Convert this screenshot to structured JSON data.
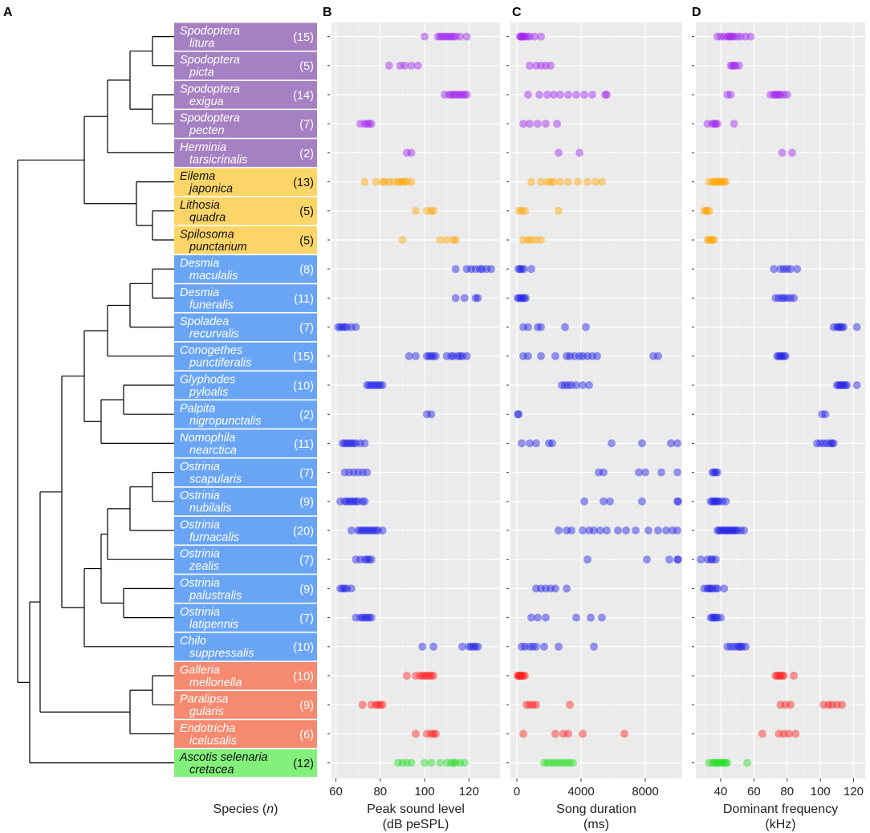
{
  "chart_data": {
    "type": "scatter",
    "panel_letters": [
      "A",
      "B",
      "C",
      "D"
    ],
    "colors": {
      "Erebidae-noctuid": "#a580c2",
      "Arctiinae": "#fcd569",
      "Crambidae": "#6aa5f5",
      "Pyralidae": "#f58a70",
      "Geometridae": "#82f07a",
      "point_purple": "#a020f0",
      "point_orange": "#ffa500",
      "point_blue": "#1c1ce6",
      "point_red": "#ff1a1a",
      "point_green": "#22dd22",
      "panel_bg": "#ebebeb"
    },
    "species": [
      {
        "genus": "Spodoptera",
        "epithet": "litura",
        "n": "(15)",
        "group": "Erebidae-noctuid",
        "pt": "point_purple",
        "peak": [
          100,
          106,
          107,
          108,
          109,
          110,
          111,
          112,
          113,
          114,
          116,
          119
        ],
        "dur": [
          180,
          250,
          300,
          350,
          420,
          500,
          650,
          800,
          1100,
          1500
        ],
        "freq": [
          38,
          40,
          42,
          44,
          45,
          46,
          47,
          48,
          50,
          52,
          55,
          58
        ]
      },
      {
        "genus": "Spodoptera",
        "epithet": "picta",
        "n": "(5)",
        "group": "Erebidae-noctuid",
        "pt": "point_purple",
        "peak": [
          84,
          89,
          91,
          94,
          97
        ],
        "dur": [
          800,
          1200,
          1500,
          1800,
          2100
        ],
        "freq": [
          46,
          47,
          48,
          49,
          51
        ]
      },
      {
        "genus": "Spodoptera",
        "epithet": "exigua",
        "n": "(14)",
        "group": "Erebidae-noctuid",
        "pt": "point_purple",
        "peak": [
          109,
          111,
          112,
          113,
          114,
          115,
          116,
          117,
          118,
          119
        ],
        "dur": [
          700,
          1400,
          1900,
          2300,
          2700,
          3200,
          3700,
          4200,
          4700,
          5500,
          5600
        ],
        "freq": [
          44,
          46,
          70,
          72,
          73,
          74,
          75,
          76,
          78,
          80
        ]
      },
      {
        "genus": "Spodoptera",
        "epithet": "pecten",
        "n": "(7)",
        "group": "Erebidae-noctuid",
        "pt": "point_purple",
        "peak": [
          71,
          73,
          74,
          75,
          76
        ],
        "dur": [
          400,
          800,
          1300,
          1800,
          2500
        ],
        "freq": [
          32,
          35,
          36,
          37,
          38,
          48
        ]
      },
      {
        "genus": "Herminia",
        "epithet": "tarsicrinalis",
        "n": "(2)",
        "group": "Erebidae-noctuid",
        "pt": "point_purple",
        "peak": [
          92,
          94
        ],
        "dur": [
          2600,
          3900
        ],
        "freq": [
          77,
          83
        ]
      },
      {
        "genus": "Eilema",
        "epithet": "japonica",
        "n": "(13)",
        "group": "Arctiinae",
        "pt": "point_orange",
        "peak": [
          73,
          78,
          81,
          82,
          84,
          86,
          88,
          89,
          90,
          91,
          92,
          94
        ],
        "dur": [
          900,
          1500,
          1900,
          2100,
          2300,
          2700,
          3200,
          3800,
          4400,
          4900,
          5300
        ],
        "freq": [
          33,
          35,
          36,
          37,
          38,
          39,
          40,
          41,
          42,
          43
        ]
      },
      {
        "genus": "Lithosia",
        "epithet": "quadra",
        "n": "(5)",
        "group": "Arctiinae",
        "pt": "point_orange",
        "peak": [
          96,
          101,
          103,
          104
        ],
        "dur": [
          150,
          300,
          500,
          2600
        ],
        "freq": [
          30,
          31,
          32,
          33
        ]
      },
      {
        "genus": "Spilosoma",
        "epithet": "punctarium",
        "n": "(5)",
        "group": "Arctiinae",
        "pt": "point_orange",
        "peak": [
          90,
          107,
          110,
          113,
          114
        ],
        "dur": [
          400,
          700,
          900,
          1200,
          1500
        ],
        "freq": [
          32,
          33,
          34,
          35,
          36
        ]
      },
      {
        "genus": "Desmia",
        "epithet": "maculalis",
        "n": "(8)",
        "group": "Crambidae",
        "pt": "point_blue",
        "peak": [
          114,
          119,
          121,
          123,
          125,
          126,
          128,
          130
        ],
        "dur": [
          100,
          200,
          300,
          450,
          900
        ],
        "freq": [
          72,
          76,
          78,
          80,
          82,
          86
        ]
      },
      {
        "genus": "Desmia",
        "epithet": "funeralis",
        "n": "(11)",
        "group": "Crambidae",
        "pt": "point_blue",
        "peak": [
          114,
          118,
          123,
          124
        ],
        "dur": [
          50,
          150,
          250,
          350,
          450,
          550
        ],
        "freq": [
          73,
          75,
          77,
          78,
          80,
          82,
          84
        ]
      },
      {
        "genus": "Spoladea",
        "epithet": "recurvalis",
        "n": "(7)",
        "group": "Crambidae",
        "pt": "point_blue",
        "peak": [
          61,
          62,
          63,
          64,
          65,
          67,
          69
        ],
        "dur": [
          400,
          700,
          1300,
          1500,
          3000,
          4300
        ],
        "freq": [
          108,
          110,
          111,
          112,
          113,
          114,
          122
        ]
      },
      {
        "genus": "Conogethes",
        "epithet": "punctiferalis",
        "n": "(15)",
        "group": "Crambidae",
        "pt": "point_blue",
        "peak": [
          93,
          96,
          101,
          102,
          103,
          104,
          105,
          110,
          112,
          113,
          115,
          116,
          117,
          119
        ],
        "dur": [
          400,
          700,
          1500,
          2400,
          3100,
          3300,
          3600,
          3900,
          4100,
          4400,
          4700,
          5000,
          8500,
          8800
        ],
        "freq": [
          74,
          75,
          76,
          77,
          78,
          79
        ]
      },
      {
        "genus": "Glyphodes",
        "epithet": "pyloalis",
        "n": "(10)",
        "group": "Crambidae",
        "pt": "point_blue",
        "peak": [
          74,
          75,
          76,
          77,
          78,
          79,
          80,
          81
        ],
        "dur": [
          2800,
          3000,
          3200,
          3400,
          3700,
          4100,
          4500
        ],
        "freq": [
          110,
          111,
          112,
          113,
          114,
          115,
          116,
          122
        ]
      },
      {
        "genus": "Palpita",
        "epithet": "nigropunctalis",
        "n": "(2)",
        "group": "Crambidae",
        "pt": "point_blue",
        "peak": [
          101,
          103
        ],
        "dur": [
          50,
          120
        ],
        "freq": [
          101,
          103
        ]
      },
      {
        "genus": "Nomophila",
        "epithet": "nearctica",
        "n": "(11)",
        "group": "Crambidae",
        "pt": "point_blue",
        "peak": [
          63,
          64,
          65,
          66,
          67,
          68,
          69,
          71,
          73
        ],
        "dur": [
          300,
          800,
          1200,
          2000,
          2200,
          5900,
          7800,
          9600,
          10000
        ],
        "freq": [
          98,
          100,
          102,
          104,
          106,
          107,
          108
        ]
      },
      {
        "genus": "Ostrinia",
        "epithet": "scapularis",
        "n": "(7)",
        "group": "Crambidae",
        "pt": "point_blue",
        "peak": [
          64,
          66,
          68,
          70,
          72,
          74
        ],
        "dur": [
          5100,
          5400,
          7600,
          8000,
          9000,
          10000
        ],
        "freq": [
          35,
          36,
          37,
          38
        ]
      },
      {
        "genus": "Ostrinia",
        "epithet": "nubilalis",
        "n": "(9)",
        "group": "Crambidae",
        "pt": "point_blue",
        "peak": [
          62,
          64,
          65,
          66,
          67,
          68,
          69,
          70,
          72,
          73
        ],
        "dur": [
          4200,
          5400,
          5800,
          7800,
          10000,
          10050
        ],
        "freq": [
          34,
          35,
          36,
          37,
          38,
          39,
          41,
          43
        ]
      },
      {
        "genus": "Ostrinia",
        "epithet": "furnacalis",
        "n": "(20)",
        "group": "Crambidae",
        "pt": "point_blue",
        "peak": [
          67,
          70,
          71,
          72,
          73,
          74,
          75,
          76,
          77,
          78,
          79,
          81
        ],
        "dur": [
          2600,
          3100,
          3400,
          4100,
          4500,
          4800,
          5200,
          5600,
          6300,
          6800,
          7400,
          8200,
          8800,
          9300,
          9700,
          10000
        ],
        "freq": [
          38,
          39,
          40,
          41,
          42,
          43,
          44,
          45,
          46,
          47,
          48,
          49,
          50,
          52,
          54
        ]
      },
      {
        "genus": "Ostrinia",
        "epithet": "zealis",
        "n": "(7)",
        "group": "Crambidae",
        "pt": "point_blue",
        "peak": [
          69,
          71,
          73,
          74,
          75,
          76
        ],
        "dur": [
          4400,
          8100,
          9500,
          10000,
          10050
        ],
        "freq": [
          28,
          32,
          34,
          35,
          37
        ]
      },
      {
        "genus": "Ostrinia",
        "epithet": "palustralis",
        "n": "(9)",
        "group": "Crambidae",
        "pt": "point_blue",
        "peak": [
          62,
          63,
          64,
          65,
          67
        ],
        "dur": [
          1200,
          1500,
          1800,
          2100,
          2400,
          3100
        ],
        "freq": [
          30,
          32,
          33,
          34,
          35,
          37,
          38,
          42
        ]
      },
      {
        "genus": "Ostrinia",
        "epithet": "latipennis",
        "n": "(7)",
        "group": "Crambidae",
        "pt": "point_blue",
        "peak": [
          69,
          71,
          72,
          73,
          74,
          75,
          76
        ],
        "dur": [
          900,
          1300,
          1800,
          3700,
          4600,
          5300
        ],
        "freq": [
          34,
          35,
          36,
          37,
          38,
          40
        ]
      },
      {
        "genus": "Chilo",
        "epithet": "suppressalis",
        "n": "(10)",
        "group": "Crambidae",
        "pt": "point_blue",
        "peak": [
          99,
          104,
          117,
          120,
          121,
          122,
          123,
          124
        ],
        "dur": [
          300,
          500,
          800,
          1000,
          1200,
          1700,
          2600,
          4800
        ],
        "freq": [
          44,
          46,
          48,
          50,
          51,
          52,
          53,
          55
        ]
      },
      {
        "genus": "Galleria",
        "epithet": "mellonella",
        "n": "(10)",
        "group": "Pyralidae",
        "pt": "point_red",
        "peak": [
          92,
          96,
          98,
          99,
          100,
          101,
          102,
          103,
          104
        ],
        "dur": [
          50,
          100,
          150,
          200,
          250,
          300,
          400,
          500
        ],
        "freq": [
          73,
          74,
          75,
          76,
          77,
          78,
          84
        ]
      },
      {
        "genus": "Paralipsa",
        "epithet": "gularis",
        "n": "(9)",
        "group": "Pyralidae",
        "pt": "point_red",
        "peak": [
          72,
          76,
          78,
          79,
          80,
          81
        ],
        "dur": [
          600,
          800,
          1000,
          1200,
          3300
        ],
        "freq": [
          76,
          79,
          82,
          102,
          105,
          107,
          110,
          113
        ]
      },
      {
        "genus": "Endotricha",
        "epithet": "icelusalis",
        "n": "(6)",
        "group": "Pyralidae",
        "pt": "point_red",
        "peak": [
          96,
          101,
          103,
          104,
          105
        ],
        "dur": [
          400,
          2400,
          2900,
          3200,
          4100,
          6700
        ],
        "freq": [
          65,
          75,
          78,
          81,
          85
        ]
      },
      {
        "genus": "Ascotis selenaria",
        "epithet": "cretacea",
        "n": "(12)",
        "group": "Geometridae",
        "pt": "point_green",
        "peak": [
          88,
          90,
          92,
          94,
          100,
          103,
          107,
          110,
          112,
          113,
          114,
          116,
          118
        ],
        "dur": [
          1700,
          1900,
          2100,
          2300,
          2500,
          2700,
          2900,
          3100,
          3300,
          3500
        ],
        "freq": [
          33,
          35,
          36,
          37,
          38,
          39,
          40,
          41,
          42,
          43,
          44,
          56
        ]
      }
    ],
    "panels": [
      {
        "key": "peak",
        "letter": "B",
        "xlabel_line1": "Peak sound level",
        "xlabel_line2": "(dB peSPL)",
        "xlim": [
          58,
          134
        ],
        "ticks": [
          60,
          80,
          100,
          120
        ],
        "tick_labels": [
          "60",
          "80",
          "100",
          "120"
        ],
        "minor": [
          70,
          90,
          110,
          130
        ]
      },
      {
        "key": "dur",
        "letter": "C",
        "xlabel_line1": "Song duration",
        "xlabel_line2": "(ms)",
        "xlim": [
          -400,
          10300
        ],
        "ticks": [
          0,
          4000,
          8000
        ],
        "tick_labels": [
          "0",
          "4000",
          "8000"
        ],
        "minor": [
          2000,
          6000,
          10000
        ]
      },
      {
        "key": "freq",
        "letter": "D",
        "xlabel_line1": "Dominant frequency",
        "xlabel_line2": "(kHz)",
        "xlim": [
          25,
          127
        ],
        "ticks": [
          40,
          60,
          80,
          100,
          120
        ],
        "tick_labels": [
          "40",
          "60",
          "80",
          "100",
          "120"
        ],
        "minor": [
          30,
          50,
          70,
          90,
          110
        ]
      }
    ],
    "species_axis_label_pre": "Species (",
    "species_axis_label_n": "n",
    "species_axis_label_post": ")"
  }
}
